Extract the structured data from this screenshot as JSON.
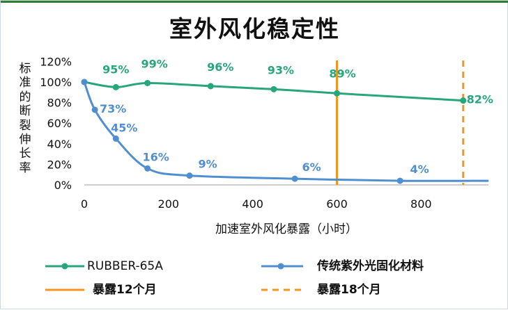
{
  "page": {
    "title": "室外风化稳定性"
  },
  "chart_data": {
    "type": "line",
    "title": "室外风化稳定性",
    "xlabel": "加速室外风化暴露（小时）",
    "ylabel": "标准的断裂伸长率",
    "xlim": [
      0,
      960
    ],
    "ylim": [
      0,
      120
    ],
    "x_ticks": [
      "0",
      "200",
      "400",
      "600",
      "800"
    ],
    "y_ticks": [
      "0%",
      "20%",
      "40%",
      "60%",
      "80%",
      "100%",
      "120%"
    ],
    "grid": false,
    "legend_position": "bottom",
    "series": [
      {
        "name": "RUBBER-65A",
        "color": "#26a67a",
        "x": [
          0,
          75,
          150,
          300,
          450,
          600,
          900
        ],
        "y": [
          100,
          95,
          99,
          96,
          93,
          89,
          82
        ],
        "labels": [
          "95%",
          "99%",
          "96%",
          "93%",
          "89%",
          "82%"
        ]
      },
      {
        "name": "传统紫外光固化材料",
        "color": "#4f8fd0",
        "x": [
          0,
          25,
          75,
          150,
          250,
          500,
          750,
          960
        ],
        "y": [
          100,
          73,
          45,
          16,
          9,
          6,
          4,
          4
        ],
        "labels": [
          "73%",
          "45%",
          "16%",
          "9%",
          "6%",
          "4%"
        ]
      }
    ],
    "reference_lines": [
      {
        "name": "暴露12个月",
        "x": 600,
        "color": "#f7941d",
        "style": "solid"
      },
      {
        "name": "暴露18个月",
        "x": 900,
        "color": "#f7941d",
        "style": "dashed"
      }
    ]
  }
}
